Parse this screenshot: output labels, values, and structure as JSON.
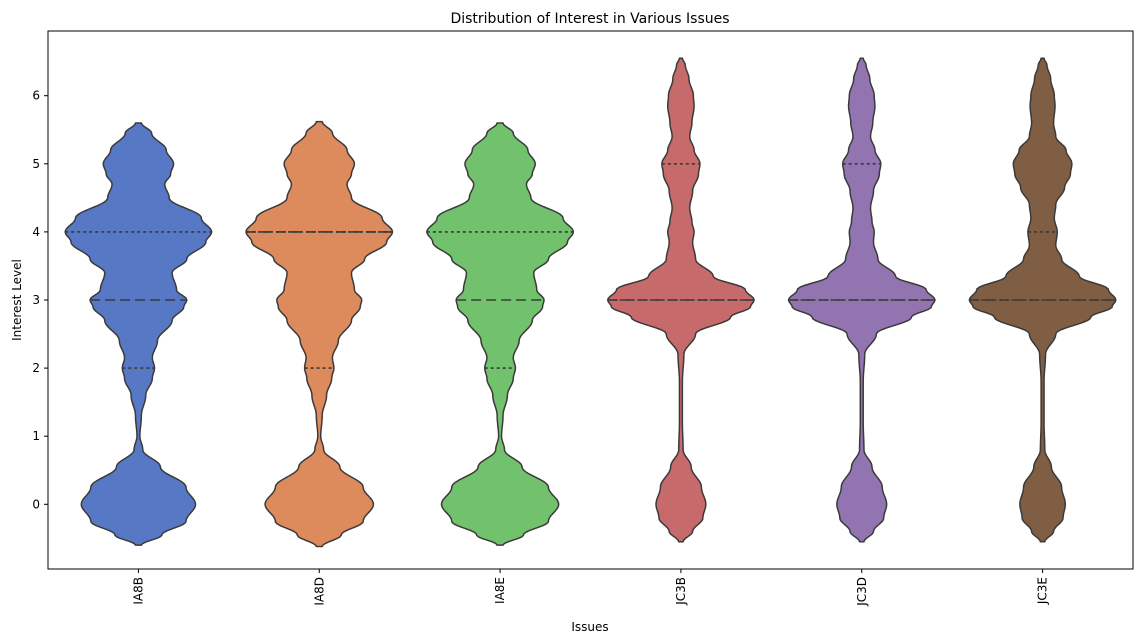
{
  "chart_data": {
    "type": "violin",
    "title": "Distribution of Interest in Various Issues",
    "xlabel": "Issues",
    "ylabel": "Interest Level",
    "ylim": [
      -0.95,
      6.95
    ],
    "yticks": [
      0,
      1,
      2,
      3,
      4,
      5,
      6
    ],
    "categories": [
      "IA8B",
      "IA8D",
      "IA8E",
      "JC3B",
      "JC3D",
      "JC3E"
    ],
    "colors": [
      "#5778c4",
      "#dd8a5c",
      "#71c16d",
      "#c76a6b",
      "#9275b0",
      "#805e44"
    ],
    "edge_color": "#3a3a3a",
    "violins": [
      {
        "name": "IA8B",
        "range": [
          -0.6,
          5.6
        ],
        "quartiles": {
          "q1": 2,
          "median": 3,
          "q3": 4
        },
        "density_profile": [
          [
            -0.6,
            0.04
          ],
          [
            -0.45,
            0.32
          ],
          [
            -0.25,
            0.65
          ],
          [
            0.0,
            0.78
          ],
          [
            0.25,
            0.65
          ],
          [
            0.55,
            0.3
          ],
          [
            0.8,
            0.06
          ],
          [
            1.0,
            0.02
          ],
          [
            1.3,
            0.04
          ],
          [
            1.6,
            0.1
          ],
          [
            1.85,
            0.19
          ],
          [
            2.0,
            0.22
          ],
          [
            2.15,
            0.19
          ],
          [
            2.4,
            0.26
          ],
          [
            2.7,
            0.46
          ],
          [
            2.9,
            0.62
          ],
          [
            3.0,
            0.66
          ],
          [
            3.15,
            0.52
          ],
          [
            3.4,
            0.46
          ],
          [
            3.6,
            0.66
          ],
          [
            3.85,
            0.92
          ],
          [
            4.0,
            1.0
          ],
          [
            4.2,
            0.86
          ],
          [
            4.5,
            0.42
          ],
          [
            4.7,
            0.36
          ],
          [
            4.85,
            0.44
          ],
          [
            5.0,
            0.48
          ],
          [
            5.2,
            0.38
          ],
          [
            5.45,
            0.18
          ],
          [
            5.6,
            0.04
          ]
        ]
      },
      {
        "name": "IA8D",
        "range": [
          -0.62,
          5.62
        ],
        "quartiles": {
          "q1": 2,
          "median": 4,
          "q3": 4
        },
        "density_profile": [
          [
            -0.62,
            0.04
          ],
          [
            -0.45,
            0.3
          ],
          [
            -0.25,
            0.6
          ],
          [
            0.0,
            0.74
          ],
          [
            0.25,
            0.6
          ],
          [
            0.55,
            0.28
          ],
          [
            0.8,
            0.06
          ],
          [
            1.0,
            0.02
          ],
          [
            1.3,
            0.04
          ],
          [
            1.6,
            0.1
          ],
          [
            1.85,
            0.17
          ],
          [
            2.0,
            0.2
          ],
          [
            2.15,
            0.18
          ],
          [
            2.4,
            0.26
          ],
          [
            2.7,
            0.44
          ],
          [
            2.9,
            0.56
          ],
          [
            3.0,
            0.58
          ],
          [
            3.15,
            0.48
          ],
          [
            3.4,
            0.44
          ],
          [
            3.6,
            0.62
          ],
          [
            3.85,
            0.92
          ],
          [
            4.0,
            1.0
          ],
          [
            4.2,
            0.86
          ],
          [
            4.5,
            0.44
          ],
          [
            4.7,
            0.38
          ],
          [
            4.85,
            0.44
          ],
          [
            5.0,
            0.48
          ],
          [
            5.2,
            0.38
          ],
          [
            5.45,
            0.18
          ],
          [
            5.62,
            0.04
          ]
        ]
      },
      {
        "name": "IA8E",
        "range": [
          -0.6,
          5.6
        ],
        "quartiles": {
          "q1": 2,
          "median": 3,
          "q3": 4
        },
        "density_profile": [
          [
            -0.6,
            0.04
          ],
          [
            -0.45,
            0.32
          ],
          [
            -0.25,
            0.66
          ],
          [
            0.0,
            0.8
          ],
          [
            0.25,
            0.66
          ],
          [
            0.55,
            0.3
          ],
          [
            0.8,
            0.06
          ],
          [
            1.0,
            0.02
          ],
          [
            1.3,
            0.04
          ],
          [
            1.6,
            0.1
          ],
          [
            1.85,
            0.18
          ],
          [
            2.0,
            0.21
          ],
          [
            2.15,
            0.18
          ],
          [
            2.4,
            0.26
          ],
          [
            2.7,
            0.44
          ],
          [
            2.9,
            0.58
          ],
          [
            3.0,
            0.6
          ],
          [
            3.15,
            0.5
          ],
          [
            3.4,
            0.46
          ],
          [
            3.6,
            0.66
          ],
          [
            3.85,
            0.92
          ],
          [
            4.0,
            1.0
          ],
          [
            4.2,
            0.86
          ],
          [
            4.5,
            0.42
          ],
          [
            4.7,
            0.36
          ],
          [
            4.85,
            0.44
          ],
          [
            5.0,
            0.48
          ],
          [
            5.2,
            0.38
          ],
          [
            5.45,
            0.18
          ],
          [
            5.6,
            0.04
          ]
        ]
      },
      {
        "name": "JC3B",
        "range": [
          -0.55,
          6.55
        ],
        "quartiles": {
          "q1": 3,
          "median": 3,
          "q3": 5
        },
        "density_profile": [
          [
            -0.55,
            0.03
          ],
          [
            -0.4,
            0.16
          ],
          [
            -0.2,
            0.3
          ],
          [
            0.0,
            0.34
          ],
          [
            0.25,
            0.28
          ],
          [
            0.55,
            0.14
          ],
          [
            0.8,
            0.03
          ],
          [
            1.2,
            0.02
          ],
          [
            1.8,
            0.02
          ],
          [
            2.2,
            0.04
          ],
          [
            2.5,
            0.2
          ],
          [
            2.75,
            0.68
          ],
          [
            2.9,
            0.95
          ],
          [
            3.0,
            1.0
          ],
          [
            3.15,
            0.88
          ],
          [
            3.35,
            0.44
          ],
          [
            3.6,
            0.2
          ],
          [
            3.85,
            0.16
          ],
          [
            4.0,
            0.18
          ],
          [
            4.15,
            0.15
          ],
          [
            4.35,
            0.12
          ],
          [
            4.6,
            0.16
          ],
          [
            4.85,
            0.24
          ],
          [
            5.0,
            0.26
          ],
          [
            5.2,
            0.18
          ],
          [
            5.4,
            0.12
          ],
          [
            5.6,
            0.15
          ],
          [
            5.85,
            0.18
          ],
          [
            6.0,
            0.17
          ],
          [
            6.25,
            0.11
          ],
          [
            6.45,
            0.06
          ],
          [
            6.55,
            0.02
          ]
        ]
      },
      {
        "name": "JC3D",
        "range": [
          -0.55,
          6.55
        ],
        "quartiles": {
          "q1": 3,
          "median": 3,
          "q3": 5
        },
        "density_profile": [
          [
            -0.55,
            0.03
          ],
          [
            -0.4,
            0.16
          ],
          [
            -0.2,
            0.3
          ],
          [
            0.0,
            0.34
          ],
          [
            0.25,
            0.28
          ],
          [
            0.55,
            0.14
          ],
          [
            0.8,
            0.03
          ],
          [
            1.2,
            0.02
          ],
          [
            1.8,
            0.02
          ],
          [
            2.2,
            0.04
          ],
          [
            2.5,
            0.2
          ],
          [
            2.75,
            0.68
          ],
          [
            2.9,
            0.95
          ],
          [
            3.0,
            1.0
          ],
          [
            3.15,
            0.88
          ],
          [
            3.35,
            0.46
          ],
          [
            3.6,
            0.22
          ],
          [
            3.85,
            0.16
          ],
          [
            4.0,
            0.17
          ],
          [
            4.15,
            0.14
          ],
          [
            4.35,
            0.12
          ],
          [
            4.6,
            0.16
          ],
          [
            4.85,
            0.24
          ],
          [
            5.0,
            0.26
          ],
          [
            5.2,
            0.18
          ],
          [
            5.4,
            0.12
          ],
          [
            5.6,
            0.15
          ],
          [
            5.85,
            0.18
          ],
          [
            6.0,
            0.17
          ],
          [
            6.25,
            0.11
          ],
          [
            6.45,
            0.06
          ],
          [
            6.55,
            0.02
          ]
        ]
      },
      {
        "name": "JC3E",
        "range": [
          -0.55,
          6.55
        ],
        "quartiles": {
          "q1": 3,
          "median": 3,
          "q3": 4
        },
        "density_profile": [
          [
            -0.55,
            0.03
          ],
          [
            -0.4,
            0.15
          ],
          [
            -0.2,
            0.28
          ],
          [
            0.0,
            0.31
          ],
          [
            0.25,
            0.26
          ],
          [
            0.55,
            0.12
          ],
          [
            0.8,
            0.03
          ],
          [
            1.2,
            0.02
          ],
          [
            1.8,
            0.02
          ],
          [
            2.2,
            0.04
          ],
          [
            2.5,
            0.18
          ],
          [
            2.75,
            0.66
          ],
          [
            2.9,
            0.95
          ],
          [
            3.0,
            1.0
          ],
          [
            3.15,
            0.9
          ],
          [
            3.35,
            0.5
          ],
          [
            3.6,
            0.26
          ],
          [
            3.8,
            0.18
          ],
          [
            4.0,
            0.2
          ],
          [
            4.2,
            0.16
          ],
          [
            4.4,
            0.18
          ],
          [
            4.65,
            0.3
          ],
          [
            4.85,
            0.38
          ],
          [
            5.0,
            0.4
          ],
          [
            5.2,
            0.32
          ],
          [
            5.4,
            0.18
          ],
          [
            5.6,
            0.15
          ],
          [
            5.85,
            0.17
          ],
          [
            6.0,
            0.16
          ],
          [
            6.25,
            0.11
          ],
          [
            6.45,
            0.06
          ],
          [
            6.55,
            0.02
          ]
        ]
      }
    ]
  }
}
